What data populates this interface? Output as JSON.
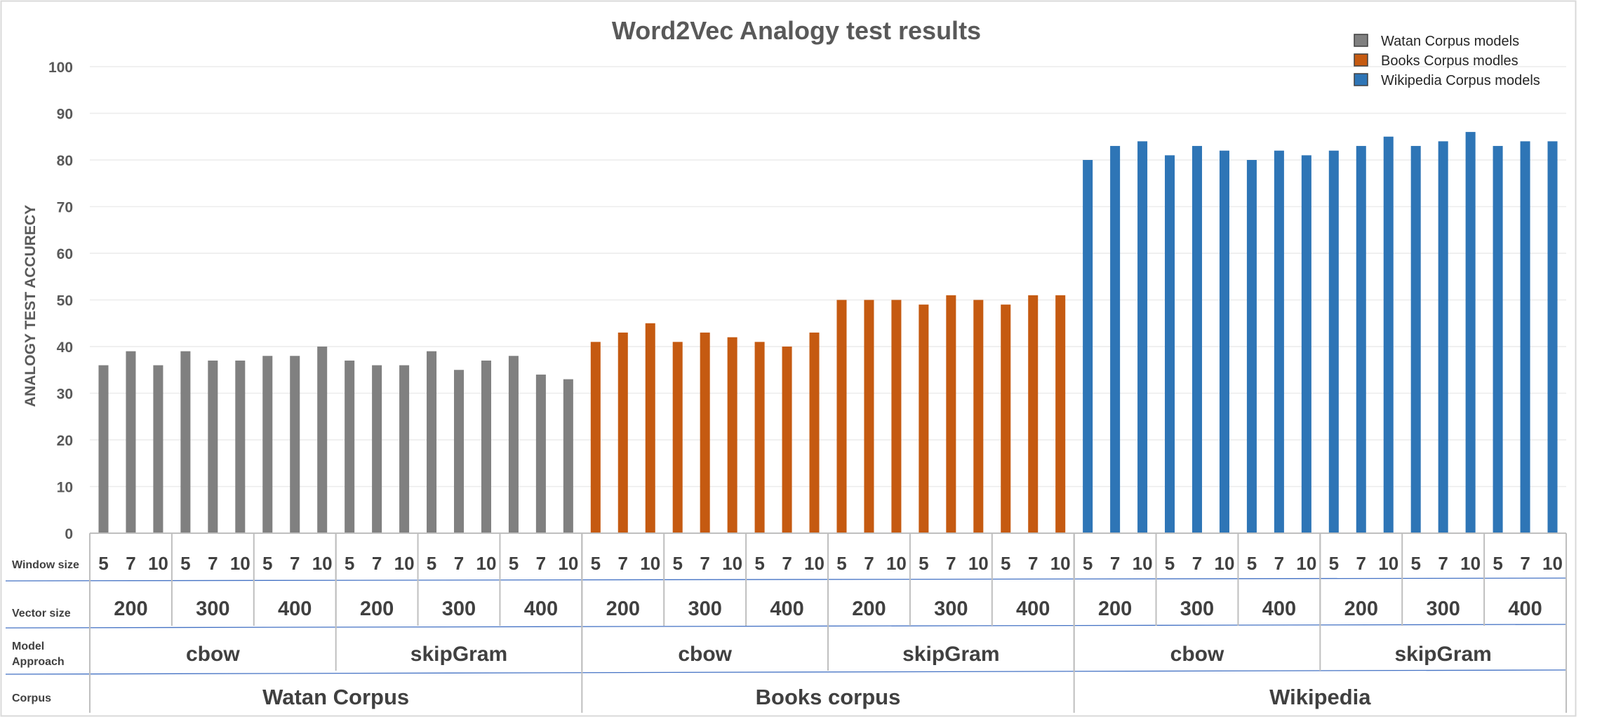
{
  "chart_data": {
    "type": "bar",
    "title": "Word2Vec Analogy test results",
    "ylabel": "ANALOGY TEST ACCURECY",
    "ylim": [
      0,
      100
    ],
    "yticks": [
      0,
      10,
      20,
      30,
      40,
      50,
      60,
      70,
      80,
      90,
      100
    ],
    "grid": true,
    "legend_position": "top-right",
    "legend": [
      {
        "label": "Watan Corpus models",
        "color": "#808080"
      },
      {
        "label": "Books Corpus modles",
        "color": "#C55A11"
      },
      {
        "label": "Wikipedia Corpus models",
        "color": "#2E75B6"
      }
    ],
    "category_rows": [
      {
        "label": "Window size"
      },
      {
        "label": "Vector size"
      },
      {
        "label": "Model Approach"
      },
      {
        "label": "Corpus"
      }
    ],
    "corpora": [
      "Watan  Corpus",
      "Books corpus",
      "Wikipedia"
    ],
    "approaches": [
      "cbow",
      "skipGram"
    ],
    "vector_sizes": [
      "200",
      "300",
      "400"
    ],
    "window_sizes": [
      "5",
      "7",
      "10"
    ],
    "series": [
      {
        "name": "Watan Corpus models",
        "color": "#808080",
        "values": [
          36,
          39,
          36,
          39,
          37,
          37,
          38,
          38,
          40,
          37,
          36,
          36,
          39,
          35,
          37,
          38,
          34,
          33
        ]
      },
      {
        "name": "Books Corpus modles",
        "color": "#C55A11",
        "values": [
          41,
          43,
          45,
          41,
          43,
          42,
          41,
          40,
          43,
          50,
          50,
          50,
          49,
          51,
          50,
          49,
          51,
          51
        ]
      },
      {
        "name": "Wikipedia Corpus models",
        "color": "#2E75B6",
        "values": [
          80,
          83,
          84,
          81,
          83,
          82,
          80,
          82,
          81,
          82,
          83,
          85,
          83,
          84,
          86,
          83,
          84,
          84
        ]
      }
    ]
  }
}
